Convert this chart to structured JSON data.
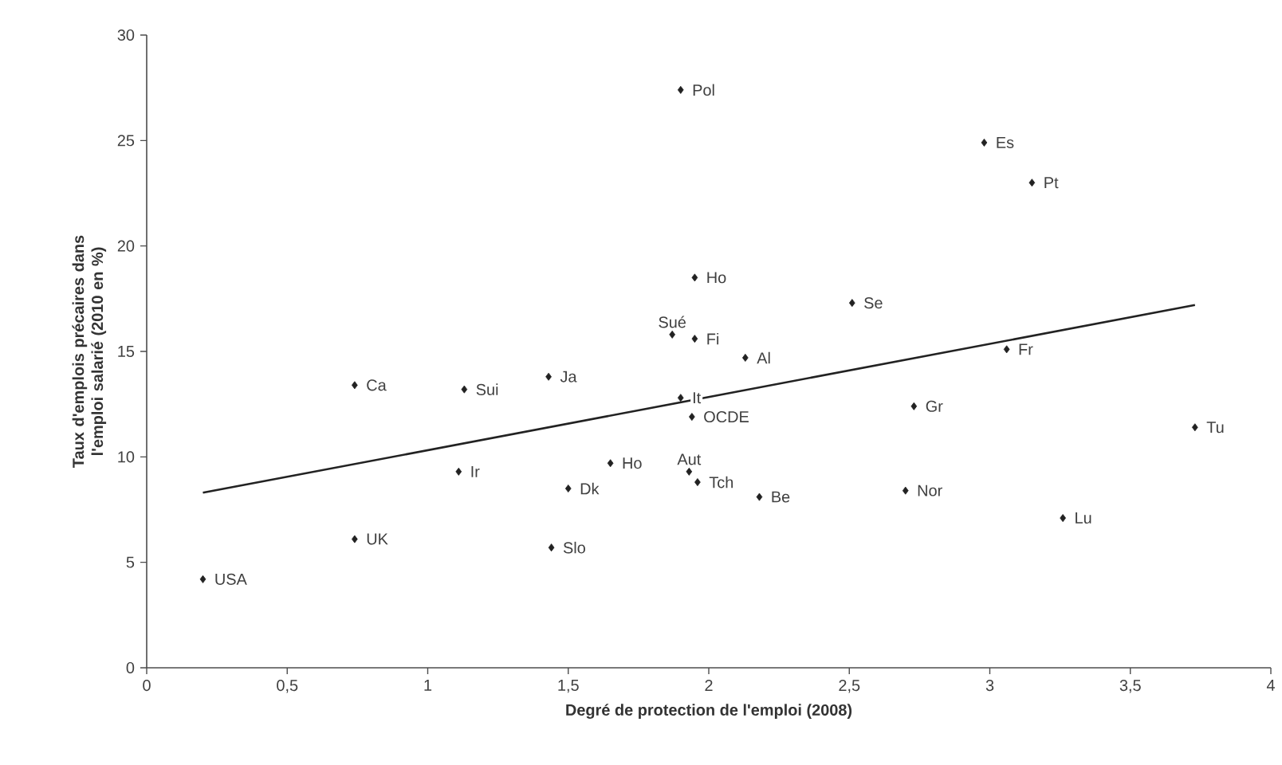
{
  "chart_data": {
    "type": "scatter",
    "xlabel": "Degré de protection de l'emploi (2008)",
    "ylabel": "Taux d'emplois précaires dans l'emploi salarié (2010 en %)",
    "xlim": [
      0,
      4
    ],
    "ylim": [
      0,
      30
    ],
    "xticks": [
      0,
      {
        "value": 0.5,
        "label": "0,5"
      },
      1,
      {
        "value": 1.5,
        "label": "1,5"
      },
      2,
      {
        "value": 2.5,
        "label": "2,5"
      },
      3,
      {
        "value": 3.5,
        "label": "3,5"
      },
      4
    ],
    "yticks": [
      0,
      5,
      10,
      15,
      20,
      25,
      30
    ],
    "grid": false,
    "marker": "diamond",
    "series": [
      {
        "color": "#222222",
        "x": [
          0.2,
          0.74,
          0.74,
          1.13,
          1.43,
          1.11,
          1.44,
          1.5,
          1.65,
          1.9,
          1.87,
          1.95,
          1.95,
          1.9,
          1.94,
          1.93,
          1.96,
          2.13,
          2.18,
          2.51,
          2.73,
          2.7,
          2.98,
          3.15,
          3.06,
          3.26,
          3.73
        ],
        "values": [
          4.2,
          6.1,
          13.4,
          13.2,
          13.8,
          9.3,
          5.7,
          8.5,
          9.7,
          12.8,
          15.8,
          15.6,
          18.5,
          27.4,
          11.9,
          9.3,
          8.8,
          14.7,
          8.1,
          17.3,
          12.4,
          8.4,
          24.9,
          23.0,
          15.1,
          7.1,
          11.4
        ]
      },
      {
        "type": "line",
        "color": "#222222",
        "marker": "none",
        "line_style": "solid",
        "x": [
          0.2,
          3.73
        ],
        "values": [
          8.3,
          17.2
        ]
      }
    ],
    "annotations": [
      {
        "text": "USA",
        "x": 0.2,
        "y": 4.2
      },
      {
        "text": "UK",
        "x": 0.74,
        "y": 6.1
      },
      {
        "text": "Ca",
        "x": 0.74,
        "y": 13.4
      },
      {
        "text": "Sui",
        "x": 1.13,
        "y": 13.2
      },
      {
        "text": "Ja",
        "x": 1.43,
        "y": 13.8
      },
      {
        "text": "Ir",
        "x": 1.11,
        "y": 9.3
      },
      {
        "text": "Slo",
        "x": 1.44,
        "y": 5.7
      },
      {
        "text": "Dk",
        "x": 1.5,
        "y": 8.5
      },
      {
        "text": "Ho",
        "x": 1.65,
        "y": 9.7
      },
      {
        "text": "It",
        "x": 1.9,
        "y": 12.8
      },
      {
        "text": "Sué",
        "x": 1.87,
        "y": 15.8
      },
      {
        "text": "Fi",
        "x": 1.95,
        "y": 15.6
      },
      {
        "text": "Ho",
        "x": 1.95,
        "y": 18.5
      },
      {
        "text": "Pol",
        "x": 1.9,
        "y": 27.4
      },
      {
        "text": "OCDE",
        "x": 1.94,
        "y": 11.9
      },
      {
        "text": "Aut",
        "x": 1.93,
        "y": 9.3
      },
      {
        "text": "Tch",
        "x": 1.96,
        "y": 8.8
      },
      {
        "text": "Al",
        "x": 2.13,
        "y": 14.7
      },
      {
        "text": "Be",
        "x": 2.18,
        "y": 8.1
      },
      {
        "text": "Se",
        "x": 2.51,
        "y": 17.3
      },
      {
        "text": "Gr",
        "x": 2.73,
        "y": 12.4
      },
      {
        "text": "Nor",
        "x": 2.7,
        "y": 8.4
      },
      {
        "text": "Es",
        "x": 2.98,
        "y": 24.9
      },
      {
        "text": "Pt",
        "x": 3.15,
        "y": 23.0
      },
      {
        "text": "Fr",
        "x": 3.06,
        "y": 15.1
      },
      {
        "text": "Lu",
        "x": 3.26,
        "y": 7.1
      },
      {
        "text": "Tu",
        "x": 3.73,
        "y": 11.4
      }
    ]
  }
}
